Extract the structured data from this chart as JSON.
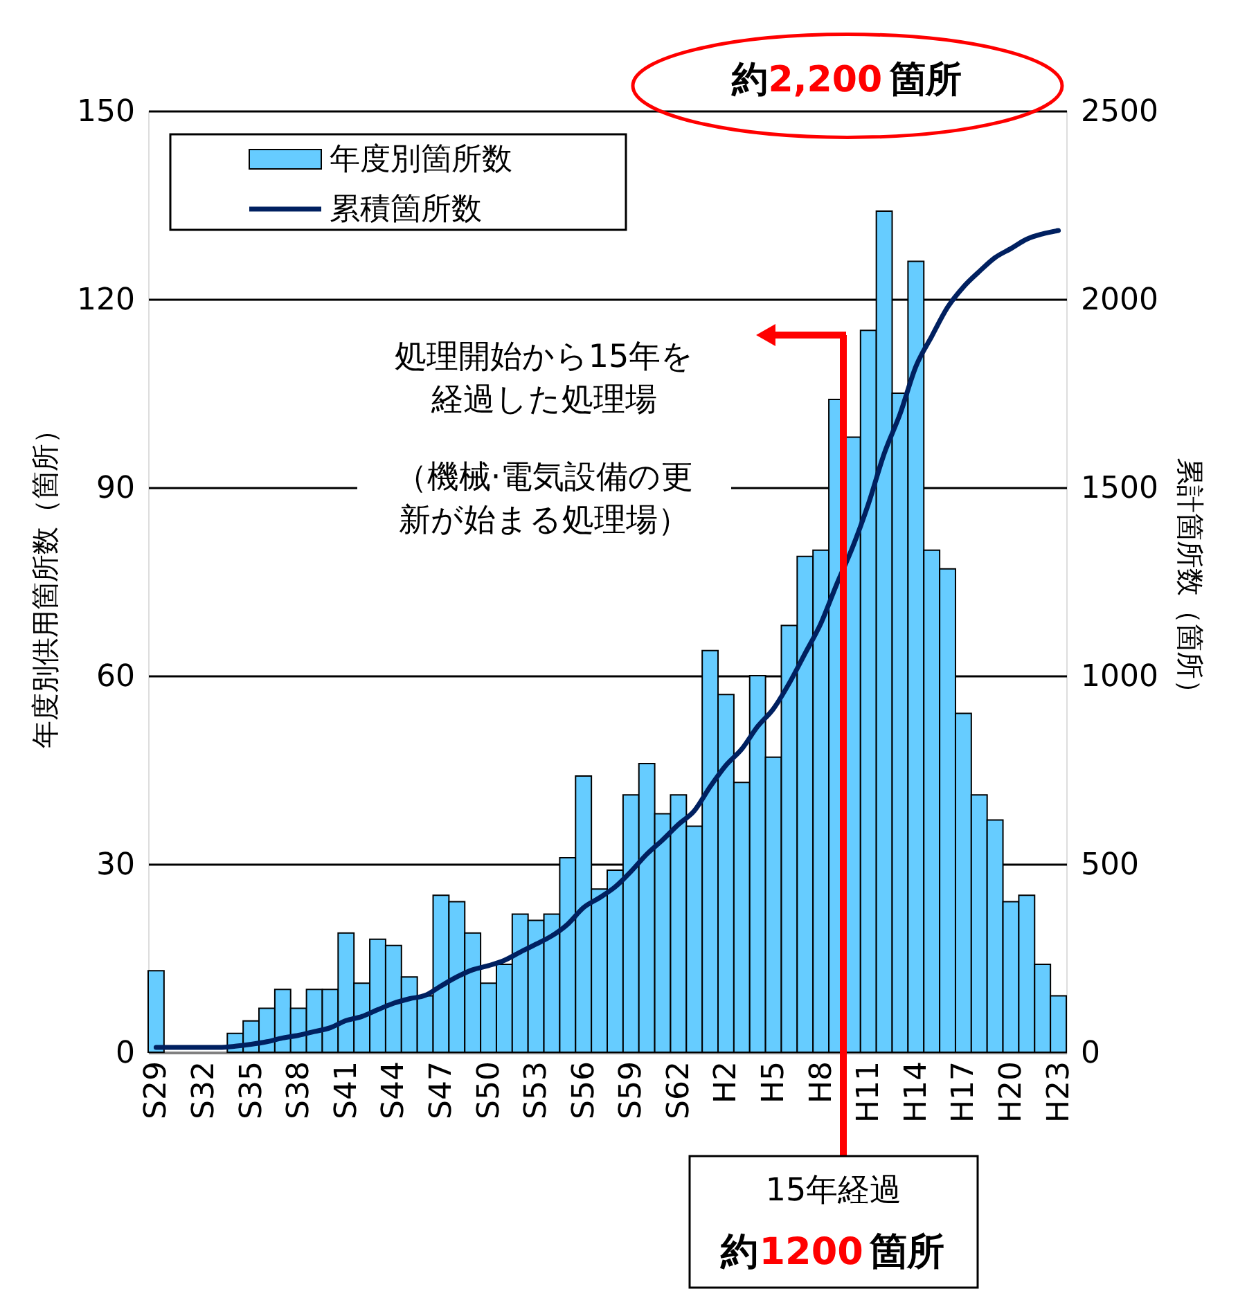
{
  "chart_data": {
    "type": "bar",
    "categories": [
      "S29",
      null,
      null,
      "S32",
      null,
      null,
      "S35",
      null,
      null,
      "S38",
      null,
      null,
      "S41",
      null,
      null,
      "S44",
      null,
      null,
      "S47",
      null,
      null,
      "S50",
      null,
      null,
      "S53",
      null,
      null,
      "S56",
      null,
      null,
      "S59",
      null,
      null,
      "S62",
      null,
      null,
      "H2",
      null,
      null,
      "H5",
      null,
      null,
      "H8",
      null,
      null,
      "H11",
      null,
      null,
      "H14",
      null,
      null,
      "H17",
      null,
      null,
      "H20",
      null,
      null,
      "H23"
    ],
    "series": [
      {
        "name": "年度別箇所数",
        "color": "#66ccff",
        "values": [
          13,
          0,
          0,
          0,
          0,
          3,
          5,
          7,
          10,
          7,
          10,
          10,
          19,
          11,
          18,
          17,
          12,
          9,
          25,
          24,
          19,
          11,
          14,
          22,
          21,
          22,
          31,
          44,
          26,
          29,
          41,
          46,
          38,
          41,
          36,
          64,
          57,
          43,
          60,
          47,
          68,
          79,
          80,
          104,
          98,
          115,
          134,
          105,
          126,
          80,
          77,
          54,
          41,
          37,
          24,
          25,
          14,
          9
        ]
      },
      {
        "name": "累積箇所数",
        "type": "line",
        "axis": "y2",
        "color": "#002060",
        "values": [
          13,
          13,
          13,
          13,
          13,
          16,
          21,
          28,
          38,
          45,
          55,
          65,
          84,
          95,
          113,
          130,
          142,
          151,
          176,
          200,
          219,
          230,
          244,
          266,
          287,
          309,
          340,
          384,
          410,
          439,
          480,
          526,
          564,
          605,
          641,
          705,
          762,
          805,
          865,
          912,
          980,
          1059,
          1139,
          1243,
          1341,
          1456,
          1590,
          1695,
          1821,
          1901,
          1978,
          2032,
          2073,
          2110,
          2134,
          2159,
          2173,
          2182
        ]
      }
    ],
    "ylabel": "年度別供用箇所数（箇所）",
    "y2label": "累計箇所数（箇所）",
    "ylim": [
      0,
      150
    ],
    "yticks": [
      0,
      30,
      60,
      90,
      120,
      150
    ],
    "y2lim": [
      0,
      2500
    ],
    "y2ticks": [
      0,
      500,
      1000,
      1500,
      2000,
      2500
    ],
    "grid": "y",
    "legend": "top left",
    "annotations": [
      "約2,200箇所",
      "処理開始から15年を経過した処理場",
      "（機械·電気設備の更新が始まる処理場）",
      "15年経過",
      "約1200箇所"
    ]
  }
}
